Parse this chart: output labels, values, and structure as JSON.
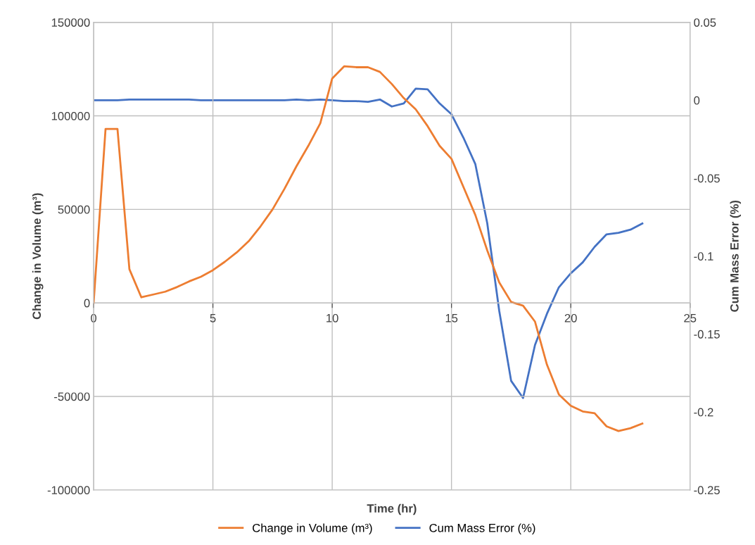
{
  "chart_data": {
    "type": "line",
    "xlabel": "Time (hr)",
    "ylabel": "Change in Volume (m³)",
    "y2label": "Cum Mass Error (%)",
    "x": [
      0,
      0.5,
      1,
      1.5,
      2,
      2.5,
      3,
      3.5,
      4,
      4.5,
      5,
      5.5,
      6,
      6.5,
      7,
      7.5,
      8,
      8.5,
      9,
      9.5,
      10,
      10.5,
      11,
      11.5,
      12,
      12.5,
      13,
      13.5,
      14,
      14.5,
      15,
      15.5,
      16,
      16.5,
      17,
      17.5,
      18,
      18.5,
      19,
      19.5,
      20,
      20.5,
      21,
      21.5,
      22,
      22.5,
      23
    ],
    "series": [
      {
        "name": "Change in Volume (m³)",
        "color": "#ed7d31",
        "values": [
          0,
          93000,
          93000,
          18000,
          3000,
          4500,
          6000,
          8500,
          11500,
          14000,
          17500,
          22000,
          27000,
          33000,
          41000,
          50000,
          61000,
          73000,
          84000,
          96000,
          120000,
          126500,
          126000,
          126000,
          123500,
          117000,
          109500,
          103500,
          94500,
          84000,
          77000,
          62000,
          47000,
          28000,
          11000,
          500,
          -1500,
          -10000,
          -33000,
          -49000,
          -55000,
          -58000,
          -59000,
          -66000,
          -68500,
          -67000,
          -64500
        ]
      },
      {
        "name": "Cum Mass Error (%)",
        "color": "#4472c4",
        "axis": "y2",
        "values": [
          0,
          0,
          0,
          0.0005,
          0.0005,
          0.0005,
          0.0005,
          0.0005,
          0.0005,
          0,
          0,
          0,
          0,
          0,
          0,
          0,
          0,
          0.0005,
          0,
          0.0005,
          0,
          -0.0005,
          -0.0005,
          -0.001,
          0.0005,
          -0.004,
          -0.002,
          0.0075,
          0.007,
          -0.002,
          -0.009,
          -0.024,
          -0.041,
          -0.079,
          -0.135,
          -0.18,
          -0.191,
          -0.157,
          -0.137,
          -0.12,
          -0.111,
          -0.104,
          -0.094,
          -0.086,
          -0.085,
          -0.083,
          -0.079
        ]
      }
    ],
    "xlim": [
      0,
      25
    ],
    "xticks": [
      0,
      5,
      10,
      15,
      20,
      25
    ],
    "ylim": [
      -100000,
      150000
    ],
    "yticks": [
      -100000,
      -50000,
      0,
      50000,
      100000,
      150000
    ],
    "y2lim": [
      -0.25,
      0.05
    ],
    "y2ticks": [
      -0.25,
      -0.2,
      -0.15,
      -0.1,
      -0.05,
      0,
      0.05
    ],
    "grid": true,
    "legend": "bottom",
    "marker": "none",
    "line_style": "solid"
  }
}
